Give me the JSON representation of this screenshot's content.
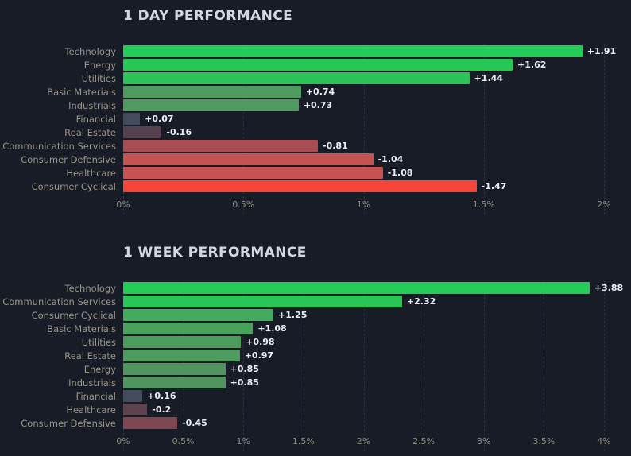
{
  "page": {
    "background": "#181c27",
    "accent_positive": "#22cc56",
    "accent_negative": "#f54538"
  },
  "chart_data": [
    {
      "type": "bar",
      "orientation": "horizontal",
      "title": "1 DAY PERFORMANCE",
      "categories": [
        "Technology",
        "Energy",
        "Utilities",
        "Basic Materials",
        "Industrials",
        "Financial",
        "Real Estate",
        "Communication Services",
        "Consumer Defensive",
        "Healthcare",
        "Consumer Cyclical"
      ],
      "values": [
        1.91,
        1.62,
        1.44,
        0.74,
        0.73,
        0.07,
        -0.16,
        -0.81,
        -1.04,
        -1.08,
        -1.47
      ],
      "value_labels": [
        "+1.91",
        "+1.62",
        "+1.44",
        "+0.74",
        "+0.73",
        "+0.07",
        "-0.16",
        "-0.81",
        "-1.04",
        "-1.08",
        "-1.47"
      ],
      "bar_colors": [
        "#22cc56",
        "#27c657",
        "#2dc258",
        "#4f9a5f",
        "#509a5f",
        "#434c5c",
        "#56414e",
        "#a84e52",
        "#c45352",
        "#c75252",
        "#f54538"
      ],
      "xlim": [
        0,
        2
      ],
      "xtick_values": [
        0,
        0.5,
        1,
        1.5,
        2
      ],
      "xtick_labels": [
        "0%",
        "0.5%",
        "1%",
        "1.5%",
        "2%"
      ],
      "grid": "dashed-vertical",
      "legend": "none"
    },
    {
      "type": "bar",
      "orientation": "horizontal",
      "title": "1 WEEK PERFORMANCE",
      "categories": [
        "Technology",
        "Communication Services",
        "Consumer Cyclical",
        "Basic Materials",
        "Utilities",
        "Real Estate",
        "Energy",
        "Industrials",
        "Financial",
        "Healthcare",
        "Consumer Defensive"
      ],
      "values": [
        3.88,
        2.32,
        1.25,
        1.08,
        0.98,
        0.97,
        0.85,
        0.85,
        0.16,
        -0.2,
        -0.45
      ],
      "value_labels": [
        "+3.88",
        "+2.32",
        "+1.25",
        "+1.08",
        "+0.98",
        "+0.97",
        "+0.85",
        "+0.85",
        "+0.16",
        "-0.2",
        "-0.45"
      ],
      "bar_colors": [
        "#22cc56",
        "#29c657",
        "#45ab5c",
        "#4aa15d",
        "#4d9c5e",
        "#4d9b5e",
        "#52945f",
        "#52945f",
        "#434c5c",
        "#5c4350",
        "#7e4853"
      ],
      "xlim": [
        0,
        4
      ],
      "xtick_values": [
        0,
        0.5,
        1,
        1.5,
        2,
        2.5,
        3,
        3.5,
        4
      ],
      "xtick_labels": [
        "0%",
        "0.5%",
        "1%",
        "1.5%",
        "2%",
        "2.5%",
        "3%",
        "3.5%",
        "4%"
      ],
      "grid": "dashed-vertical",
      "legend": "none"
    }
  ]
}
